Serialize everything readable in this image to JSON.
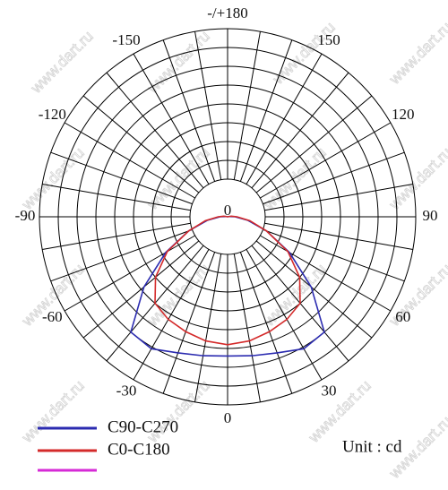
{
  "chart_data": {
    "type": "polar",
    "x": [
      -180,
      -170,
      -160,
      -150,
      -140,
      -130,
      -120,
      -110,
      -100,
      -90,
      -80,
      -70,
      -60,
      -50,
      -40,
      -30,
      -20,
      -10,
      0,
      10,
      20,
      30,
      40,
      50,
      60,
      70,
      80,
      90,
      100,
      110,
      120,
      130,
      140,
      150,
      160,
      170,
      180
    ],
    "series": [
      {
        "name": "C90-C270",
        "color": "#2b2bb0",
        "values": [
          0,
          0,
          0,
          0,
          0,
          0,
          0,
          0,
          1,
          4,
          11,
          22,
          38,
          58,
          80,
          81,
          77,
          75,
          74,
          75,
          77,
          81,
          80,
          58,
          38,
          22,
          11,
          4,
          1,
          0,
          0,
          0,
          0,
          0,
          0,
          0,
          0
        ]
      },
      {
        "name": "C0-C180",
        "color": "#d42a2a",
        "values": [
          0,
          0,
          0,
          0,
          0,
          0,
          0,
          0,
          2,
          5,
          12,
          22,
          37,
          50,
          60,
          63,
          65,
          67,
          68,
          67,
          65,
          63,
          60,
          50,
          37,
          22,
          12,
          5,
          2,
          0,
          0,
          0,
          0,
          0,
          0,
          0,
          0
        ]
      }
    ],
    "xticks": [
      {
        "value": 180,
        "label": "-/+180"
      },
      150,
      -150,
      120,
      -120,
      90,
      -90,
      60,
      -60,
      30,
      -30,
      0
    ],
    "rlim": [
      0,
      100
    ],
    "rticks": [
      0
    ],
    "unit_label": "Unit : cd",
    "watermark": "www.dart.ru"
  }
}
